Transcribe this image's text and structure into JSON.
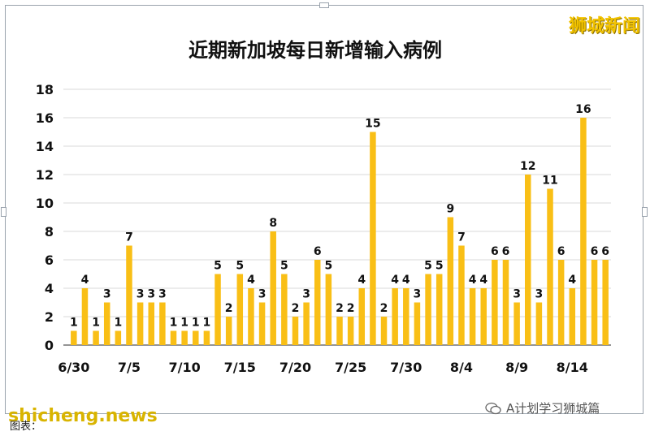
{
  "brand": "狮城新闻",
  "watermark_left": "shicheng.news",
  "watermark_right": "A计划学习狮城篇",
  "caption": "图表：",
  "chart_data": {
    "type": "bar",
    "title": "近期新加坡每日新增输入病例",
    "bar_color": "#F9BF16",
    "ylim": [
      0,
      18
    ],
    "yticks": [
      0,
      2,
      4,
      6,
      8,
      10,
      12,
      14,
      16,
      18
    ],
    "xtick_labels": [
      {
        "index": 0,
        "label": "6/30"
      },
      {
        "index": 5,
        "label": "7/5"
      },
      {
        "index": 10,
        "label": "7/10"
      },
      {
        "index": 15,
        "label": "7/15"
      },
      {
        "index": 20,
        "label": "7/20"
      },
      {
        "index": 25,
        "label": "7/25"
      },
      {
        "index": 30,
        "label": "7/30"
      },
      {
        "index": 35,
        "label": "8/4"
      },
      {
        "index": 40,
        "label": "8/9"
      },
      {
        "index": 45,
        "label": "8/14"
      }
    ],
    "values": [
      1,
      4,
      1,
      3,
      1,
      7,
      3,
      3,
      3,
      1,
      1,
      1,
      1,
      5,
      2,
      5,
      4,
      3,
      8,
      5,
      2,
      3,
      6,
      5,
      2,
      2,
      4,
      15,
      2,
      4,
      4,
      3,
      5,
      5,
      9,
      7,
      4,
      4,
      6,
      6,
      3,
      12,
      3,
      11,
      6,
      4,
      16,
      6,
      6
    ],
    "grid": "horizontal"
  }
}
